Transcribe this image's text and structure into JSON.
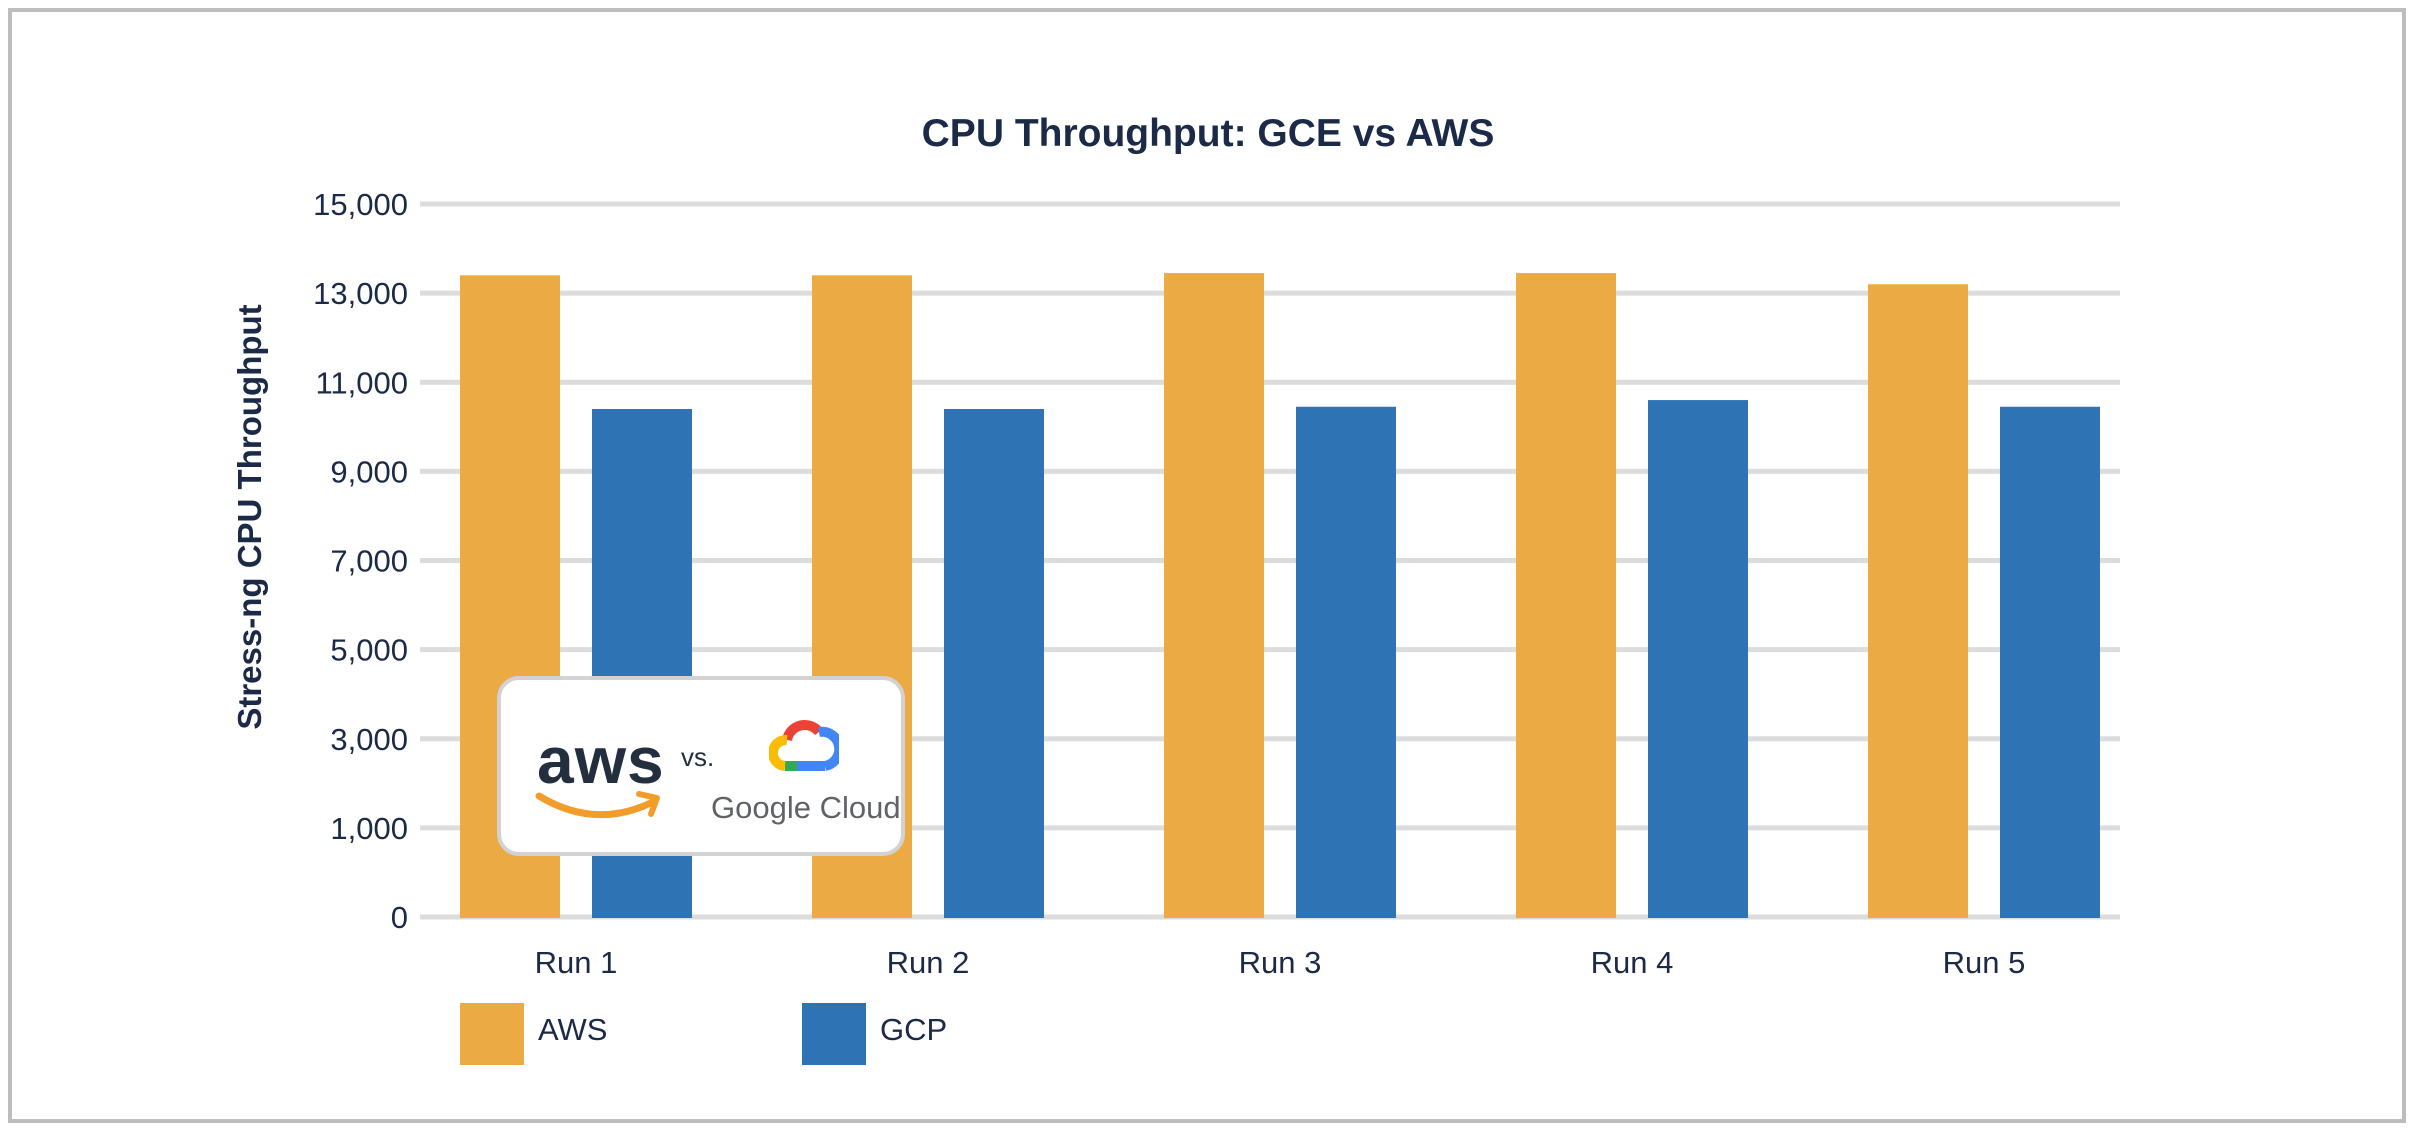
{
  "chart_data": {
    "type": "bar",
    "title": "CPU Throughput: GCE vs AWS",
    "xlabel": "",
    "ylabel": "Stress-ng CPU Throughput",
    "categories": [
      "Run 1",
      "Run 2",
      "Run 3",
      "Run 4",
      "Run 5"
    ],
    "series": [
      {
        "name": "AWS",
        "color": "#ebaa43",
        "values": [
          13400,
          13400,
          13450,
          13450,
          13200
        ]
      },
      {
        "name": "GCP",
        "color": "#2e74b5",
        "values": [
          10400,
          10400,
          10450,
          10600,
          10450
        ]
      }
    ],
    "y_ticks": [
      0,
      1000,
      3000,
      5000,
      7000,
      9000,
      11000,
      13000,
      15000
    ],
    "y_tick_labels": [
      "0",
      "1,000",
      "3,000",
      "5,000",
      "7,000",
      "9,000",
      "11,000",
      "13,000",
      "15,000"
    ],
    "ylim": [
      0,
      15000
    ],
    "grid": true,
    "gridline_color": "#dcdcdc",
    "legend_position": "bottom-left"
  },
  "overlay_logo": {
    "left_brand": "aws",
    "separator": "vs.",
    "right_brand": "Google Cloud"
  }
}
